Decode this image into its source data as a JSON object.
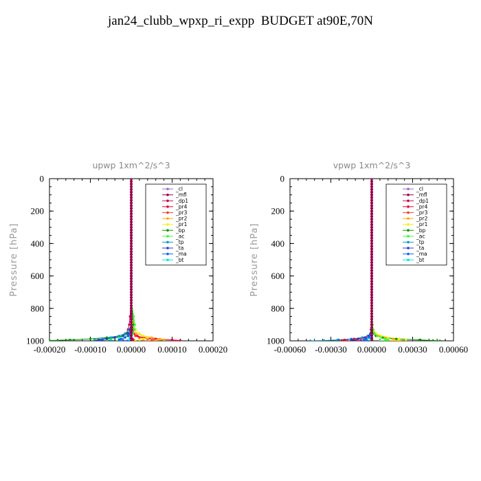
{
  "title": "jan24_clubb_wpxp_ri_expp  BUDGET at90E,70N",
  "series_styles": [
    {
      "name": "_cl",
      "color": "#9966cc"
    },
    {
      "name": "_mfl",
      "color": "#99004d"
    },
    {
      "name": "_dp1",
      "color": "#cc0055"
    },
    {
      "name": "_pr4",
      "color": "#e6002e"
    },
    {
      "name": "_pr3",
      "color": "#ff3333"
    },
    {
      "name": "_pr2",
      "color": "#ffaa00"
    },
    {
      "name": "_pr1",
      "color": "#ffee00"
    },
    {
      "name": "_bp",
      "color": "#009900"
    },
    {
      "name": "_ac",
      "color": "#33ff33"
    },
    {
      "name": "_tp",
      "color": "#0099cc"
    },
    {
      "name": "_ta",
      "color": "#3333cc"
    },
    {
      "name": "_ma",
      "color": "#0066ff"
    },
    {
      "name": "_bt",
      "color": "#00e6e6"
    }
  ],
  "chart_data": [
    {
      "type": "line",
      "title": "upwp   1xm^2/s^3",
      "xlabel": "",
      "ylabel": "Pressure [hPa]",
      "xlim": [
        -0.0002,
        0.0002
      ],
      "ylim": [
        1000,
        0
      ],
      "xticks": [
        "-0.00020",
        "-0.00010",
        "0.00000",
        "0.00010",
        "0.00020"
      ],
      "yticks": [
        "0",
        "200",
        "400",
        "600",
        "800",
        "1000"
      ],
      "legend_position": "top-right",
      "pressure": [
        0,
        150,
        300,
        450,
        600,
        750,
        850,
        900,
        930,
        955,
        970,
        980,
        988,
        994,
        998,
        1000
      ],
      "series": [
        {
          "name": "_cl",
          "values": [
            0,
            0,
            0,
            0,
            0,
            0,
            0,
            0,
            0,
            0,
            0,
            0,
            0,
            0,
            0,
            0
          ]
        },
        {
          "name": "_mfl",
          "values": [
            0,
            0,
            0,
            0,
            0,
            0,
            0,
            0,
            0,
            0,
            0,
            0,
            0,
            0,
            0,
            0
          ]
        },
        {
          "name": "_dp1",
          "values": [
            0,
            0,
            0,
            0,
            0,
            0,
            -3e-06,
            -5e-06,
            -8e-06,
            -1e-05,
            -6e-06,
            -2e-06,
            3e-06,
            6e-06,
            4e-06,
            0
          ]
        },
        {
          "name": "_pr4",
          "values": [
            0,
            0,
            0,
            0,
            0,
            0,
            0,
            2e-06,
            4e-06,
            6e-06,
            1.5e-05,
            3e-05,
            6e-05,
            0.0001,
            0.00012,
            0.0001
          ]
        },
        {
          "name": "_pr3",
          "values": [
            0,
            0,
            0,
            0,
            0,
            0,
            0,
            0,
            2e-06,
            4e-06,
            1e-05,
            2e-05,
            4e-05,
            6e-05,
            5e-05,
            3e-05
          ]
        },
        {
          "name": "_pr2",
          "values": [
            0,
            0,
            0,
            0,
            0,
            0,
            2e-06,
            4e-06,
            8e-06,
            1.2e-05,
            3e-05,
            5e-05,
            7e-05,
            8e-05,
            6e-05,
            4e-05
          ]
        },
        {
          "name": "_pr1",
          "values": [
            0,
            0,
            0,
            0,
            0,
            0,
            2e-06,
            4e-06,
            1e-05,
            2e-05,
            3e-05,
            4e-05,
            3e-05,
            2e-05,
            1e-05,
            0
          ]
        },
        {
          "name": "_bp",
          "values": [
            0,
            0,
            0,
            0,
            0,
            0,
            4e-06,
            6e-06,
            3e-06,
            -1e-05,
            -3e-05,
            -6e-05,
            -0.0001,
            -0.00015,
            -0.0002,
            -0.00018
          ]
        },
        {
          "name": "_ac",
          "values": [
            0,
            0,
            0,
            0,
            0,
            0,
            6e-06,
            9e-06,
            8e-06,
            4e-06,
            -1e-05,
            -3e-05,
            -5e-05,
            -6e-05,
            -4e-05,
            -2e-05
          ]
        },
        {
          "name": "_tp",
          "values": [
            0,
            0,
            0,
            0,
            0,
            0,
            0,
            0,
            -5e-06,
            -1.5e-05,
            -3e-05,
            -5e-05,
            -7e-05,
            -9e-05,
            -8e-05,
            -5e-05
          ]
        },
        {
          "name": "_ta",
          "values": [
            0,
            0,
            0,
            0,
            0,
            0,
            0,
            0,
            -3e-06,
            -8e-06,
            -2e-05,
            -4e-05,
            -6e-05,
            -8e-05,
            -7e-05,
            -4e-05
          ]
        },
        {
          "name": "_ma",
          "values": [
            0,
            0,
            0,
            0,
            0,
            0,
            0,
            0,
            0,
            -3e-06,
            -8e-06,
            -1.5e-05,
            -2.5e-05,
            -3e-05,
            -2e-05,
            -1e-05
          ]
        },
        {
          "name": "_bt",
          "values": [
            0,
            0,
            0,
            0,
            0,
            0,
            0,
            0,
            0,
            0,
            -2e-06,
            -3e-06,
            -4e-06,
            -4e-06,
            -3e-06,
            -2e-06
          ]
        }
      ]
    },
    {
      "type": "line",
      "title": "vpwp   1xm^2/s^3",
      "xlabel": "",
      "ylabel": "Pressure [hPa]",
      "xlim": [
        -0.0006,
        0.0006
      ],
      "ylim": [
        1000,
        0
      ],
      "xticks": [
        "-0.00060",
        "-0.00030",
        "0.00000",
        "0.00030",
        "0.00060"
      ],
      "yticks": [
        "0",
        "200",
        "400",
        "600",
        "800",
        "1000"
      ],
      "legend_position": "top-right",
      "pressure": [
        0,
        150,
        300,
        450,
        600,
        750,
        850,
        900,
        930,
        955,
        970,
        980,
        988,
        994,
        998,
        1000
      ],
      "series": [
        {
          "name": "_cl",
          "values": [
            0,
            0,
            0,
            0,
            0,
            0,
            0,
            0,
            0,
            0,
            0,
            0,
            0,
            0,
            0,
            0
          ]
        },
        {
          "name": "_mfl",
          "values": [
            0,
            0,
            0,
            0,
            0,
            0,
            0,
            0,
            0,
            0,
            0,
            0,
            0,
            0,
            0,
            0
          ]
        },
        {
          "name": "_dp1",
          "values": [
            0,
            0,
            0,
            0,
            0,
            0,
            0,
            -3e-06,
            -6e-06,
            -1e-05,
            -1.5e-05,
            -1.2e-05,
            -6e-06,
            0,
            4e-06,
            0
          ]
        },
        {
          "name": "_pr4",
          "values": [
            0,
            0,
            0,
            0,
            0,
            0,
            0,
            0,
            -5e-06,
            -1e-05,
            -3e-05,
            -7e-05,
            -0.00013,
            -0.0002,
            -0.00022,
            -0.00015
          ]
        },
        {
          "name": "_pr3",
          "values": [
            0,
            0,
            0,
            0,
            0,
            0,
            0,
            0,
            -3e-06,
            -8e-06,
            -2e-05,
            -4e-05,
            -8e-05,
            -0.00012,
            -0.0001,
            -6e-05
          ]
        },
        {
          "name": "_pr2",
          "values": [
            0,
            0,
            0,
            0,
            0,
            0,
            2e-06,
            5e-06,
            1e-05,
            2e-05,
            5e-05,
            0.0001,
            0.00016,
            0.0002,
            0.00015,
            0.0001
          ]
        },
        {
          "name": "_pr1",
          "values": [
            0,
            0,
            0,
            0,
            0,
            0,
            3e-06,
            6e-06,
            1.2e-05,
            3e-05,
            7e-05,
            0.00012,
            0.0002,
            0.00025,
            0.0002,
            0.00015
          ]
        },
        {
          "name": "_bp",
          "values": [
            0,
            0,
            0,
            0,
            0,
            0,
            0,
            2e-06,
            5e-06,
            1e-05,
            3e-05,
            8e-05,
            0.00018,
            0.00035,
            0.00045,
            0.0005
          ]
        },
        {
          "name": "_ac",
          "values": [
            0,
            0,
            0,
            0,
            0,
            0,
            3e-06,
            6e-06,
            1e-05,
            2e-05,
            4e-05,
            7e-05,
            0.0001,
            0.00012,
            0.0001,
            6e-05
          ]
        },
        {
          "name": "_tp",
          "values": [
            0,
            0,
            0,
            0,
            0,
            0,
            0,
            0,
            -4e-06,
            -1e-05,
            -3e-05,
            -7e-05,
            -0.00015,
            -0.00025,
            -0.00035,
            -0.00045
          ]
        },
        {
          "name": "_ta",
          "values": [
            0,
            0,
            0,
            0,
            0,
            0,
            0,
            0,
            -3e-06,
            -8e-06,
            -2e-05,
            -5e-05,
            -0.0001,
            -0.00015,
            -0.00012,
            -8e-05
          ]
        },
        {
          "name": "_ma",
          "values": [
            0,
            0,
            0,
            0,
            0,
            0,
            0,
            0,
            0,
            -4e-06,
            -1e-05,
            -2e-05,
            -4e-05,
            -6e-05,
            -5e-05,
            -3e-05
          ]
        },
        {
          "name": "_bt",
          "values": [
            0,
            0,
            0,
            0,
            0,
            0,
            0,
            0,
            0,
            0,
            -3e-06,
            -5e-06,
            -8e-06,
            -1e-05,
            -8e-06,
            -5e-06
          ]
        }
      ]
    }
  ]
}
